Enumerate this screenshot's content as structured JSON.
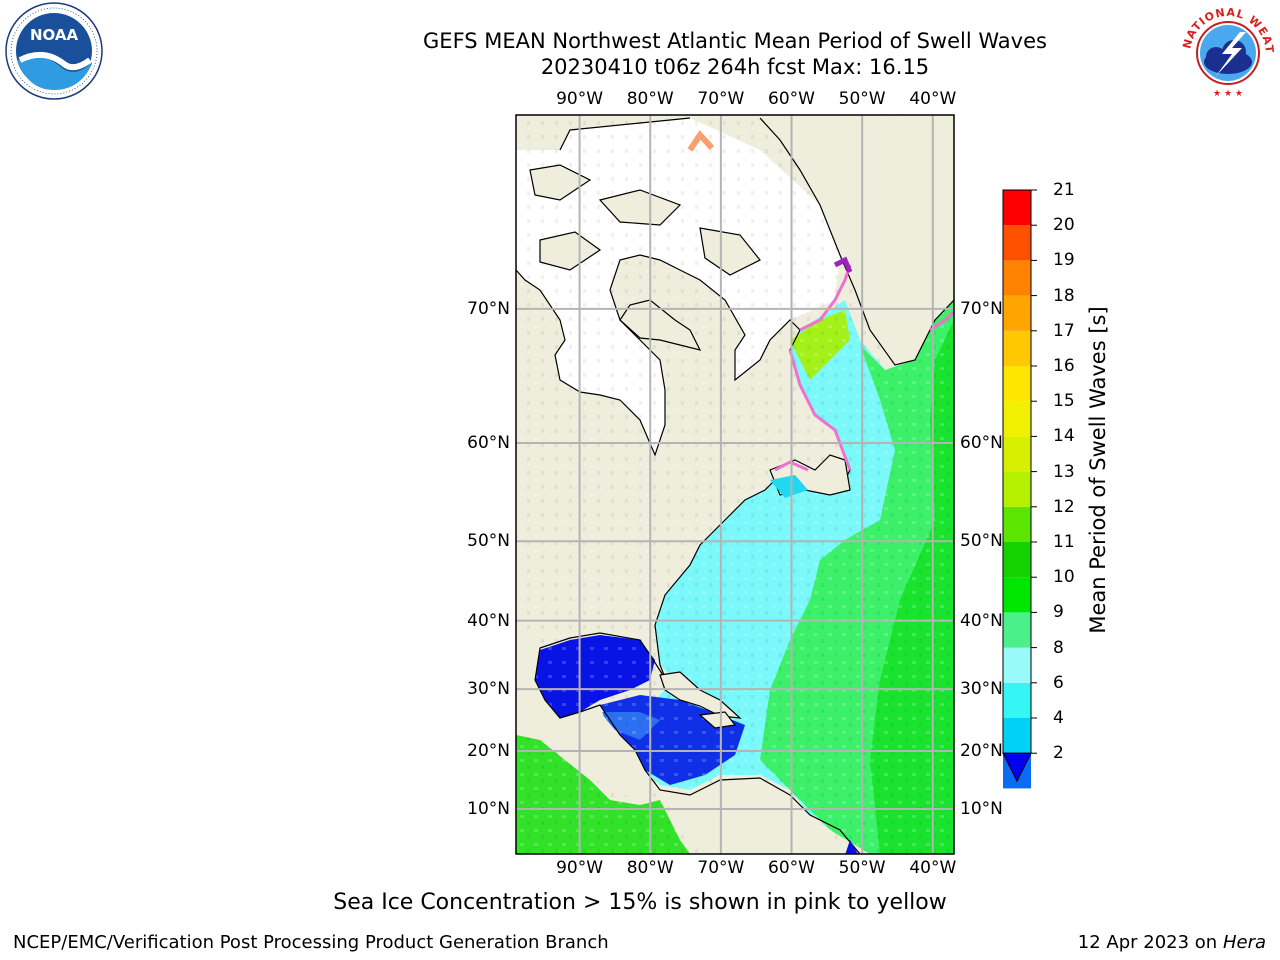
{
  "header": {
    "title_line1": "GEFS MEAN Northwest Atlantic Mean Period of Swell Waves",
    "title_line2": "20230410 t06z 264h fcst   Max: 16.15"
  },
  "logos": {
    "left": {
      "name": "noaa-logo",
      "text": "NOAA",
      "ring_text": "NATIONAL OCEANIC AND ATMOSPHERIC ADMINISTRATION · U.S. DEPARTMENT OF COMMERCE"
    },
    "right": {
      "name": "nws-logo",
      "ring_text": "NATIONAL WEATHER SERVICE"
    }
  },
  "map": {
    "region": "Northwest Atlantic",
    "lon_range": [
      -99,
      -37
    ],
    "lat_range": [
      2,
      79
    ],
    "projection": "mercator",
    "grid": true,
    "lon_labels": [
      "90°W",
      "80°W",
      "70°W",
      "60°W",
      "50°W",
      "40°W"
    ],
    "lat_labels": [
      "10°N",
      "20°N",
      "30°N",
      "40°N",
      "50°N",
      "60°N",
      "70°N"
    ]
  },
  "colorbar": {
    "label": "Mean Period of Swell Waves [s]",
    "ticks": [
      "2",
      "4",
      "6",
      "8",
      "9",
      "10",
      "11",
      "12",
      "13",
      "14",
      "15",
      "16",
      "17",
      "18",
      "19",
      "20",
      "21"
    ],
    "colors": [
      "#0a6cf5",
      "#00d2f5",
      "#35f5f5",
      "#9afafa",
      "#4cf08a",
      "#00e600",
      "#14d200",
      "#5ae600",
      "#b4f000",
      "#d8f000",
      "#f0f000",
      "#ffe600",
      "#ffc800",
      "#ffa500",
      "#ff8200",
      "#ff5000",
      "#ff0000"
    ],
    "under_color": "#0000f0",
    "extend": "min"
  },
  "colors": {
    "land": "#efeddc",
    "ice": "#ffffff",
    "grid": "#b4b4b4"
  },
  "footnote": "Sea Ice Concentration > 15% is shown in pink to yellow",
  "credit": "NCEP/EMC/Verification Post Processing Product Generation Branch",
  "run_date": {
    "date": "12 Apr 2023 on",
    "host": "Hera"
  }
}
